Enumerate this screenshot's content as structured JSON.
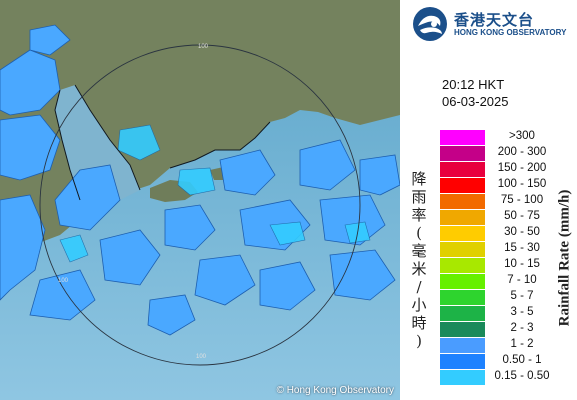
{
  "header": {
    "org_name_zh": "香港天文台",
    "org_name_en": "HONG KONG OBSERVATORY",
    "logo_icon": "hko-logo-icon"
  },
  "observation": {
    "time": "20:12 HKT",
    "date": "06-03-2025"
  },
  "map": {
    "range_rings": [
      {
        "label": "100"
      },
      {
        "label": "100"
      },
      {
        "label": "100"
      }
    ],
    "copyright": "© Hong Kong Observatory"
  },
  "legend": {
    "title_zh": [
      "降",
      "雨",
      "率",
      "(",
      "毫",
      "米",
      "/",
      "小",
      "時",
      ")"
    ],
    "title_en": "Rainfall Rate (mm/h)",
    "items": [
      {
        "label": ">300",
        "color": "#ff00ff"
      },
      {
        "label": "200 - 300",
        "color": "#c40088"
      },
      {
        "label": "150 - 200",
        "color": "#e8003e"
      },
      {
        "label": "100 - 150",
        "color": "#ff0000"
      },
      {
        "label": "75 - 100",
        "color": "#f26a00"
      },
      {
        "label": "50 - 75",
        "color": "#f0a800"
      },
      {
        "label": "30 - 50",
        "color": "#ffcc00"
      },
      {
        "label": "15 - 30",
        "color": "#e0d000"
      },
      {
        "label": "10 - 15",
        "color": "#a8e800"
      },
      {
        "label": "7 - 10",
        "color": "#66f000"
      },
      {
        "label": "5 - 7",
        "color": "#2ed42e"
      },
      {
        "label": "3 - 5",
        "color": "#1db347"
      },
      {
        "label": "2 - 3",
        "color": "#1a8a5a"
      },
      {
        "label": "1 - 2",
        "color": "#4a9cff"
      },
      {
        "label": "0.50 - 1",
        "color": "#1e82ff"
      },
      {
        "label": "0.15 - 0.50",
        "color": "#33ccff"
      }
    ]
  }
}
